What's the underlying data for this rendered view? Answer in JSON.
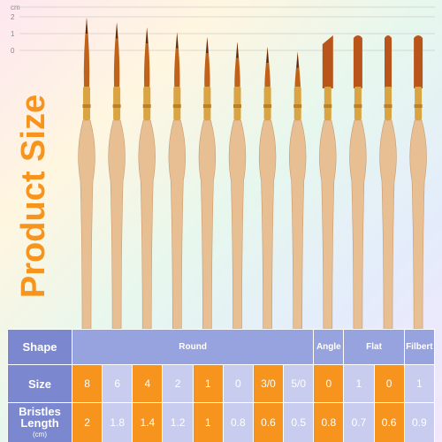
{
  "ruler": {
    "unit": "cm",
    "labels": [
      "2",
      "1",
      "0"
    ]
  },
  "title": "Product Size",
  "table": {
    "shape_label": "Shape",
    "shapes": [
      "Round",
      "Angle",
      "Flat",
      "Filbert"
    ],
    "size_label": "Size",
    "sizes": [
      "8",
      "6",
      "4",
      "2",
      "1",
      "0",
      "3/0",
      "5/0",
      "0",
      "1",
      "0",
      "1"
    ],
    "length_label": "Bristles Length",
    "length_unit": "(cm)",
    "lengths": [
      "2",
      "1.8",
      "1.4",
      "1.2",
      "1",
      "0.8",
      "0.6",
      "0.5",
      "0.8",
      "0.7",
      "0.6",
      "0.9"
    ]
  }
}
